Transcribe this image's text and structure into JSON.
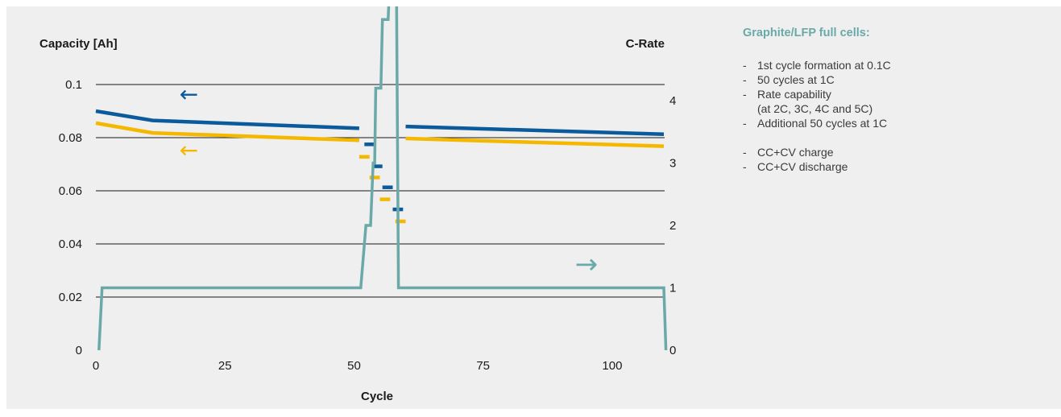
{
  "chart_data": {
    "type": "line",
    "xlabel": "Cycle",
    "ylabel_left": "Capacity [Ah]",
    "ylabel_right": "C-Rate",
    "xlim": [
      0,
      110
    ],
    "ylim_left": [
      0,
      0.1
    ],
    "ylim_right": [
      0,
      4.25
    ],
    "xticks": [
      "0",
      "25",
      "50",
      "75",
      "100"
    ],
    "xtick_values": [
      0,
      25,
      50,
      75,
      100
    ],
    "yticks_left": [
      "0",
      "0.02",
      "0.04",
      "0.06",
      "0.08",
      "0.1"
    ],
    "ytick_values_left": [
      0,
      0.02,
      0.04,
      0.06,
      0.08,
      0.1
    ],
    "yticks_right": [
      "0",
      "1",
      "2",
      "3",
      "4"
    ],
    "ytick_values_right": [
      0,
      1,
      2,
      3,
      4
    ],
    "grid": "horizontal",
    "colors": {
      "blue": "#0a5a9c",
      "yellow": "#f5b800",
      "teal": "#6aa9a8"
    },
    "series": [
      {
        "axis": "left",
        "color": "#0a5a9c",
        "segments": [
          {
            "x": [
              0,
              11,
              51
            ],
            "y": [
              0.09,
              0.0865,
              0.0835
            ]
          },
          {
            "x": [
              52,
              54
            ],
            "y": [
              0.0775,
              0.0775
            ]
          },
          {
            "x": [
              53.5,
              55.5
            ],
            "y": [
              0.0692,
              0.0692
            ]
          },
          {
            "x": [
              55.5,
              57.5
            ],
            "y": [
              0.0613,
              0.0613
            ]
          },
          {
            "x": [
              57.5,
              59.5
            ],
            "y": [
              0.053,
              0.053
            ]
          },
          {
            "x": [
              60,
              110
            ],
            "y": [
              0.0842,
              0.0813
            ]
          }
        ]
      },
      {
        "axis": "left",
        "color": "#f5b800",
        "segments": [
          {
            "x": [
              0,
              11,
              51
            ],
            "y": [
              0.0855,
              0.0818,
              0.079
            ]
          },
          {
            "x": [
              51,
              53
            ],
            "y": [
              0.0728,
              0.0728
            ]
          },
          {
            "x": [
              53,
              55
            ],
            "y": [
              0.065,
              0.065
            ]
          },
          {
            "x": [
              55,
              57
            ],
            "y": [
              0.0568,
              0.0568
            ]
          },
          {
            "x": [
              58,
              60
            ],
            "y": [
              0.0485,
              0.0485
            ]
          },
          {
            "x": [
              60,
              110
            ],
            "y": [
              0.0797,
              0.0768
            ]
          }
        ]
      },
      {
        "axis": "right",
        "color": "#6aa9a8",
        "segments": [
          {
            "x": [
              0.6,
              1.2,
              51.3,
              52.3,
              53.2,
              53.7,
              54.0,
              54.2,
              55.2,
              55.5,
              56.6,
              57.0,
              58.2,
              58.6,
              59.3,
              110,
              110.4
            ],
            "y": [
              0,
              1,
              1,
              2,
              2,
              3,
              3,
              4.2,
              4.2,
              5.3,
              5.3,
              6.1,
              6.1,
              1,
              1,
              1,
              0
            ]
          }
        ]
      }
    ],
    "annotations": [
      {
        "text": "←",
        "color": "#0a5a9c",
        "x": 18,
        "y": 0.0935
      },
      {
        "text": "←",
        "color": "#f5b800",
        "x": 18,
        "y": 0.0725
      },
      {
        "text": "→",
        "color": "#6aa9a8",
        "x": 95,
        "y": 0.029
      }
    ]
  },
  "sidebar": {
    "title": "Graphite/LFP full cells:",
    "items": [
      "1st cycle formation at 0.1C",
      "50 cycles at 1C",
      "Rate capability",
      "(at 2C, 3C, 4C and 5C)",
      "Additional 50 cycles at 1C",
      "CC+CV charge",
      "CC+CV discharge"
    ]
  }
}
